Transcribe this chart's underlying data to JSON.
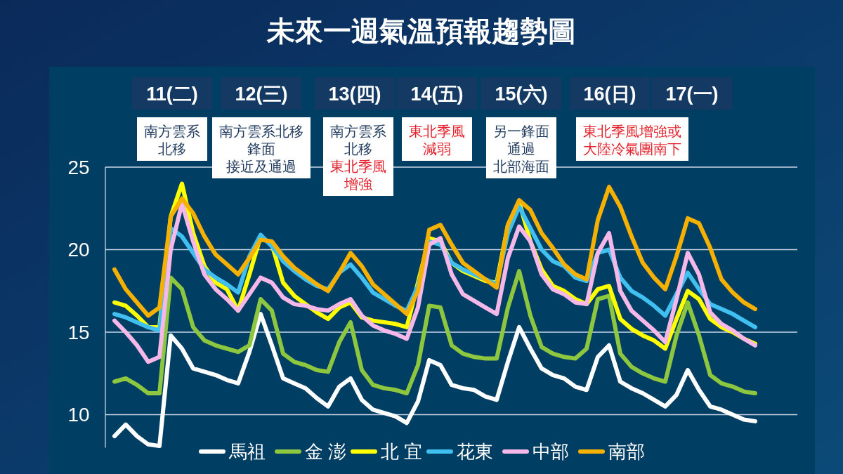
{
  "chart_data": {
    "type": "line",
    "title": "未來一週氣溫預報趨勢圖",
    "categories": [
      null,
      null,
      null,
      null,
      null,
      null,
      null,
      null,
      null,
      null,
      null,
      null,
      null,
      null,
      null,
      null,
      null,
      null,
      null,
      null,
      null,
      null,
      null,
      null,
      null,
      null,
      null,
      null,
      null,
      null,
      null,
      null,
      null,
      null,
      null,
      null,
      null,
      null,
      null,
      null,
      null,
      null,
      null,
      null,
      null,
      null,
      null,
      null,
      null,
      null,
      null,
      null,
      null,
      null,
      null,
      null,
      null,
      null
    ],
    "series": [
      {
        "name": "馬祖",
        "color": "#ffffff",
        "values": [
          8.7,
          9.4,
          8.7,
          8.2,
          8.1,
          14.8,
          14.0,
          12.8,
          12.6,
          12.4,
          12.1,
          11.9,
          13.8,
          16.1,
          14.2,
          12.2,
          11.9,
          11.6,
          11.0,
          10.5,
          11.7,
          12.2,
          10.9,
          10.3,
          10.1,
          9.9,
          9.5,
          10.8,
          13.3,
          13.0,
          11.8,
          11.6,
          11.5,
          11.1,
          10.9,
          13.2,
          15.3,
          14.0,
          12.8,
          12.4,
          12.2,
          11.7,
          11.5,
          13.5,
          14.2,
          12.0,
          11.6,
          11.3,
          10.9,
          10.5,
          11.2,
          12.7,
          11.5,
          10.5,
          10.3,
          10.0,
          9.7,
          9.6
        ]
      },
      {
        "name": "金 澎",
        "color": "#8dc63f",
        "values": [
          12.0,
          12.2,
          11.8,
          11.3,
          11.3,
          18.3,
          17.6,
          15.3,
          14.5,
          14.2,
          14.0,
          13.8,
          14.2,
          17.0,
          16.3,
          13.7,
          13.2,
          13.0,
          12.7,
          12.6,
          14.4,
          15.6,
          12.7,
          11.8,
          11.6,
          11.5,
          11.3,
          13.0,
          16.6,
          16.5,
          14.2,
          13.7,
          13.5,
          13.4,
          13.4,
          16.5,
          18.7,
          16.0,
          14.1,
          13.7,
          13.5,
          13.4,
          14.0,
          17.0,
          17.2,
          13.7,
          12.9,
          12.5,
          12.2,
          12.0,
          14.8,
          16.8,
          14.8,
          12.4,
          11.9,
          11.7,
          11.4,
          11.3
        ]
      },
      {
        "name": "北 宜",
        "color": "#ffff00",
        "values": [
          16.8,
          16.6,
          16.0,
          15.3,
          15.3,
          22.0,
          24.0,
          21.0,
          19.0,
          18.0,
          17.6,
          16.3,
          18.5,
          20.8,
          20.3,
          18.0,
          17.2,
          16.7,
          16.2,
          15.8,
          16.5,
          16.8,
          15.9,
          15.7,
          15.6,
          15.5,
          15.3,
          18.0,
          20.7,
          20.5,
          19.2,
          18.7,
          18.4,
          18.1,
          18.0,
          21.5,
          22.9,
          20.5,
          18.8,
          17.8,
          17.5,
          17.0,
          16.7,
          17.6,
          17.8,
          15.8,
          15.2,
          14.8,
          14.5,
          14.0,
          15.8,
          17.5,
          17.0,
          15.8,
          15.3,
          15.0,
          14.6,
          14.3
        ]
      },
      {
        "name": "花東",
        "color": "#3fc0f0",
        "values": [
          16.1,
          15.9,
          15.6,
          15.3,
          15.1,
          21.3,
          20.8,
          19.8,
          18.8,
          18.3,
          17.9,
          17.4,
          19.6,
          20.9,
          20.2,
          19.3,
          18.7,
          18.2,
          17.8,
          17.6,
          18.6,
          19.1,
          18.3,
          17.4,
          17.0,
          16.6,
          16.3,
          17.8,
          20.5,
          20.3,
          19.2,
          18.8,
          18.5,
          18.2,
          17.9,
          21.0,
          22.6,
          21.3,
          20.0,
          19.3,
          19.0,
          18.3,
          18.1,
          19.8,
          20.0,
          18.3,
          17.5,
          17.1,
          16.6,
          16.0,
          17.3,
          18.6,
          17.6,
          16.7,
          16.4,
          16.1,
          15.7,
          15.3
        ]
      },
      {
        "name": "中部",
        "color": "#f5b8e8",
        "values": [
          15.7,
          15.0,
          14.2,
          13.2,
          13.5,
          20.0,
          22.8,
          20.5,
          18.5,
          17.6,
          17.0,
          16.3,
          17.3,
          18.3,
          18.0,
          17.1,
          16.7,
          16.6,
          16.4,
          16.3,
          16.7,
          17.0,
          16.0,
          15.4,
          15.1,
          14.9,
          14.6,
          16.5,
          20.3,
          20.7,
          18.5,
          17.3,
          16.9,
          16.5,
          16.1,
          19.5,
          21.4,
          20.5,
          18.5,
          17.6,
          17.3,
          16.8,
          16.7,
          19.8,
          21.0,
          17.5,
          16.3,
          15.7,
          15.1,
          14.4,
          17.0,
          19.8,
          18.5,
          16.2,
          15.5,
          15.1,
          14.6,
          14.2
        ]
      },
      {
        "name": "南部",
        "color": "#f5b000",
        "values": [
          18.8,
          17.6,
          16.8,
          16.0,
          16.5,
          22.0,
          23.1,
          22.2,
          20.8,
          19.7,
          19.1,
          18.5,
          19.5,
          20.6,
          20.5,
          19.6,
          18.9,
          18.4,
          17.9,
          17.5,
          18.6,
          19.8,
          19.0,
          17.9,
          17.3,
          16.7,
          16.1,
          17.5,
          21.2,
          21.5,
          20.3,
          19.2,
          18.7,
          18.2,
          17.7,
          21.5,
          23.0,
          22.4,
          21.0,
          20.1,
          19.1,
          18.5,
          18.2,
          21.8,
          23.8,
          22.6,
          20.8,
          19.2,
          18.3,
          17.6,
          19.6,
          21.9,
          21.6,
          20.1,
          18.2,
          17.4,
          16.8,
          16.4
        ]
      }
    ],
    "ylim": [
      8,
      25
    ],
    "yticks": [
      10,
      15,
      20,
      25
    ],
    "grid": "y",
    "legend": "bottom",
    "annotations": [
      "11(二)",
      "12(三)",
      "13(四)",
      "14(五)",
      "15(六)",
      "16(日)",
      "17(一)",
      "南方雲系",
      "北移",
      "南方雲系北移",
      "鋒面",
      "接近及通過",
      "南方雲系",
      "北移",
      "東北季風",
      "增強",
      "東北季風",
      "減弱",
      "另一鋒面",
      "通過",
      "北部海面",
      "東北季風增強或",
      "大陸冷氣團南下"
    ]
  }
}
